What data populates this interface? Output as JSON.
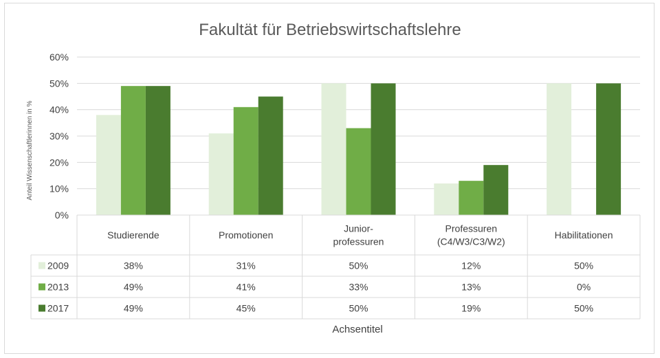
{
  "chart_data": {
    "type": "bar",
    "title": "Fakultät für Betriebswirtschaftslehre",
    "ylabel": "Anteil Wissenschaftlerinnen in %",
    "xlabel": "Achsentitel",
    "ylim": [
      0,
      60
    ],
    "yticks": [
      0,
      10,
      20,
      30,
      40,
      50,
      60
    ],
    "ytick_labels": [
      "0%",
      "10%",
      "20%",
      "30%",
      "40%",
      "50%",
      "60%"
    ],
    "grid": true,
    "legend": "data-table-left",
    "categories": [
      [
        "Studierende"
      ],
      [
        "Promotionen"
      ],
      [
        "Junior-",
        "professuren"
      ],
      [
        "Professuren",
        "(C4/W3/C3/W2)"
      ],
      [
        "Habilitationen"
      ]
    ],
    "series": [
      {
        "name": "2009",
        "color": "#e2efda",
        "values": [
          38,
          31,
          50,
          12,
          50
        ],
        "labels": [
          "38%",
          "31%",
          "50%",
          "12%",
          "50%"
        ]
      },
      {
        "name": "2013",
        "color": "#70ad47",
        "values": [
          49,
          41,
          33,
          13,
          0
        ],
        "labels": [
          "49%",
          "41%",
          "33%",
          "13%",
          "0%"
        ]
      },
      {
        "name": "2017",
        "color": "#4a7c2f",
        "values": [
          49,
          45,
          50,
          19,
          50
        ],
        "labels": [
          "49%",
          "45%",
          "50%",
          "19%",
          "50%"
        ]
      }
    ]
  }
}
